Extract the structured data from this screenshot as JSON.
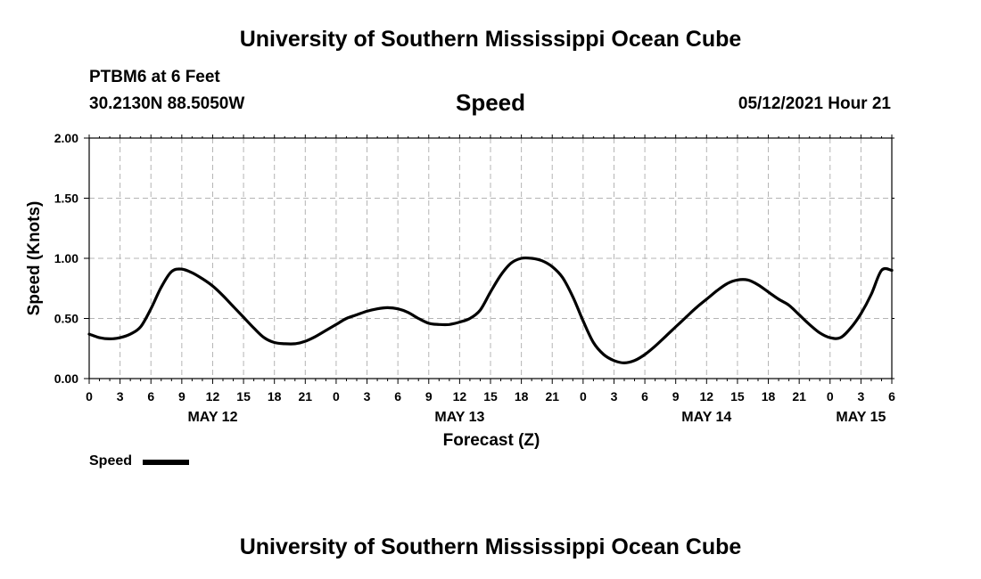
{
  "header": {
    "title": "University of Southern Mississippi Ocean Cube",
    "station": "PTBM6 at 6 Feet",
    "coords": "30.2130N  88.5050W",
    "parameter": "Speed",
    "datetime": "05/12/2021 Hour 21"
  },
  "footer": {
    "title": "University of Southern Mississippi Ocean Cube"
  },
  "legend": {
    "label": "Speed"
  },
  "chart_data": {
    "type": "line",
    "title": "Speed",
    "xlabel": "Forecast (Z)",
    "ylabel": "Speed (Knots)",
    "xlim": [
      0,
      78
    ],
    "ylim": [
      0,
      2
    ],
    "grid": true,
    "x_unit": "hours since May 12 00Z",
    "yticks": [
      "0.00",
      "0.50",
      "1.00",
      "1.50",
      "2.00"
    ],
    "xtick_labels": [
      "0",
      "3",
      "6",
      "9",
      "12",
      "15",
      "18",
      "21",
      "0",
      "3",
      "6",
      "9",
      "12",
      "15",
      "18",
      "21",
      "0",
      "3",
      "6",
      "9",
      "12",
      "15",
      "18",
      "21",
      "0",
      "3",
      "6"
    ],
    "day_labels": [
      {
        "label": "MAY 12",
        "hour": 12
      },
      {
        "label": "MAY 13",
        "hour": 36
      },
      {
        "label": "MAY 14",
        "hour": 60
      },
      {
        "label": "MAY 15",
        "hour": 75
      }
    ],
    "series": [
      {
        "name": "Speed",
        "color": "#000000",
        "x": [
          0,
          1,
          2,
          3,
          4,
          5,
          6,
          7,
          8,
          9,
          10,
          11,
          12,
          13,
          14,
          15,
          16,
          17,
          18,
          19,
          20,
          21,
          22,
          23,
          24,
          25,
          26,
          27,
          28,
          29,
          30,
          31,
          32,
          33,
          34,
          35,
          36,
          37,
          38,
          39,
          40,
          41,
          42,
          43,
          44,
          45,
          46,
          47,
          48,
          49,
          50,
          51,
          52,
          53,
          54,
          55,
          56,
          57,
          58,
          59,
          60,
          61,
          62,
          63,
          64,
          65,
          66,
          67,
          68,
          69,
          70,
          71,
          72,
          73,
          74,
          75,
          76,
          77,
          78
        ],
        "values": [
          0.37,
          0.34,
          0.33,
          0.34,
          0.37,
          0.43,
          0.58,
          0.76,
          0.89,
          0.91,
          0.88,
          0.83,
          0.77,
          0.69,
          0.6,
          0.51,
          0.42,
          0.34,
          0.3,
          0.29,
          0.29,
          0.31,
          0.35,
          0.4,
          0.45,
          0.5,
          0.53,
          0.56,
          0.58,
          0.59,
          0.58,
          0.55,
          0.5,
          0.46,
          0.45,
          0.45,
          0.47,
          0.5,
          0.57,
          0.72,
          0.86,
          0.96,
          1.0,
          1.0,
          0.98,
          0.93,
          0.84,
          0.68,
          0.48,
          0.3,
          0.2,
          0.15,
          0.13,
          0.15,
          0.2,
          0.27,
          0.35,
          0.43,
          0.51,
          0.59,
          0.66,
          0.73,
          0.79,
          0.82,
          0.82,
          0.78,
          0.72,
          0.66,
          0.61,
          0.53,
          0.45,
          0.38,
          0.34,
          0.34,
          0.42,
          0.54,
          0.7,
          0.9,
          0.9
        ]
      }
    ]
  }
}
